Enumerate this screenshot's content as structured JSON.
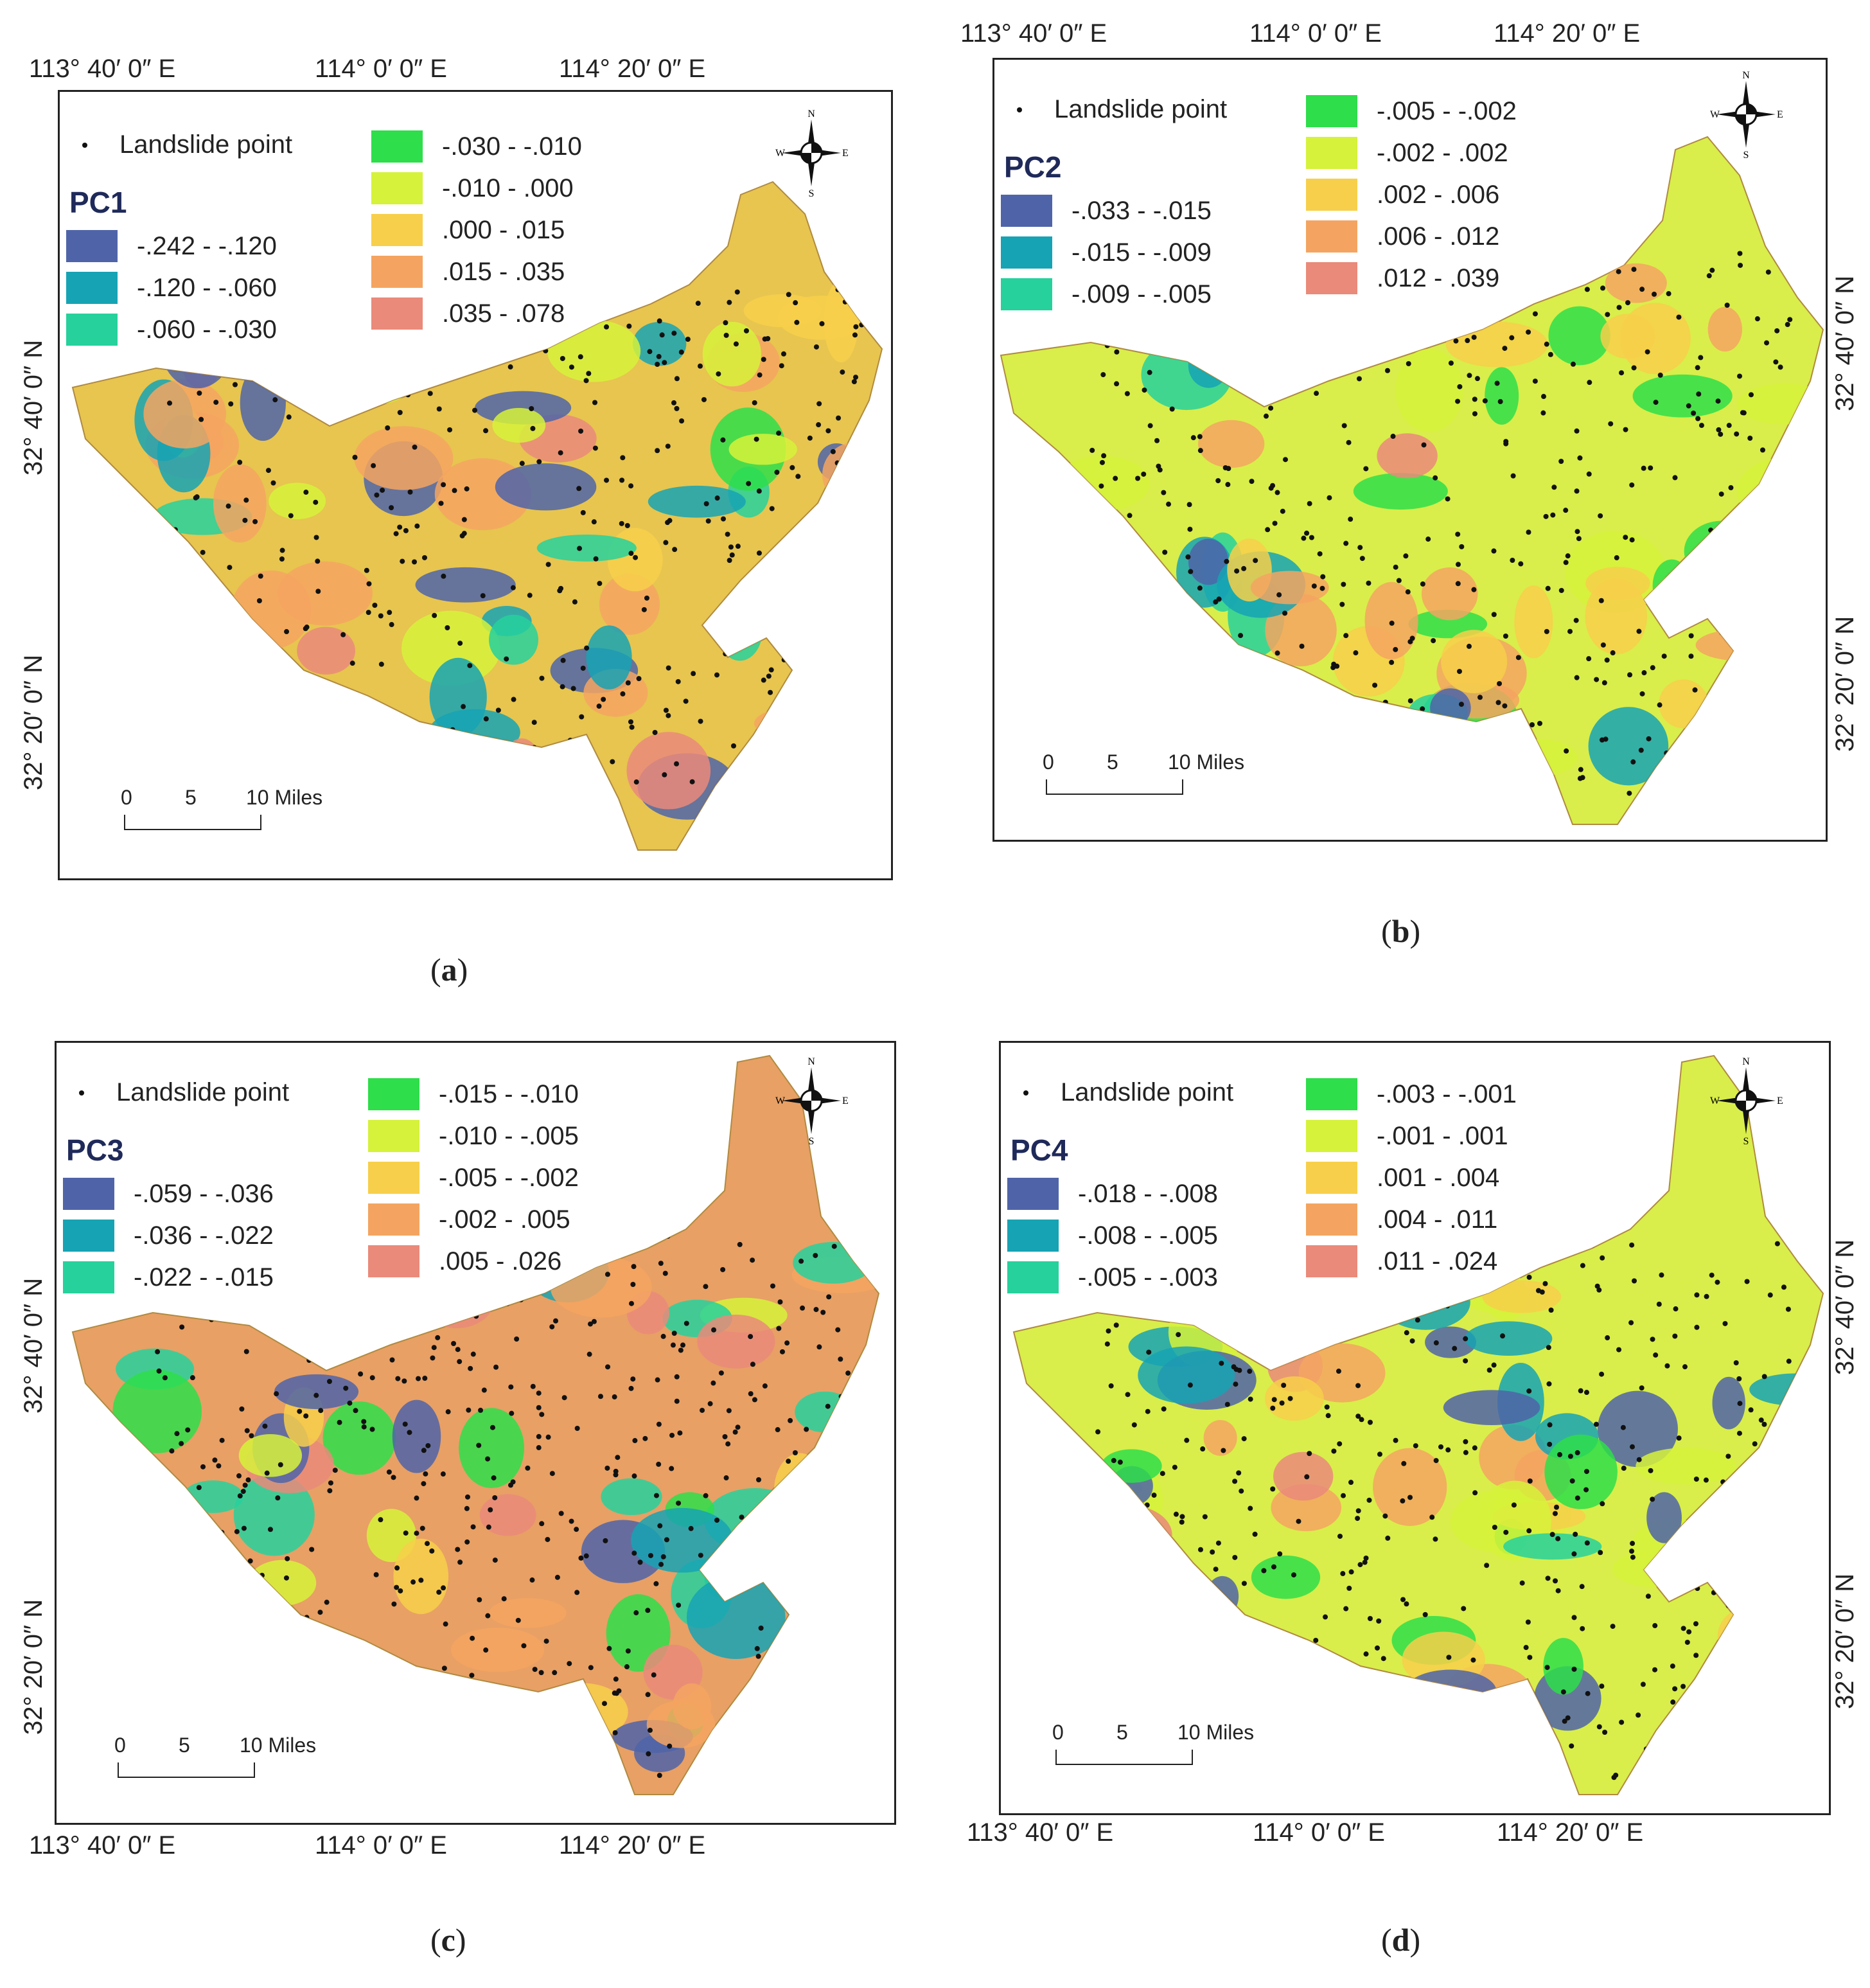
{
  "panels": [
    {
      "id": "a",
      "caption": "a",
      "pc_label": "PC1",
      "landslide_label": "Landslide point",
      "classes_left": [
        {
          "range": "-.242 - -.120",
          "color": "#4f64a8"
        },
        {
          "range": "-.120 - -.060",
          "color": "#16a3b4"
        },
        {
          "range": "-.060 - -.030",
          "color": "#26d19c"
        }
      ],
      "classes_right": [
        {
          "range": "-.030 - -.010",
          "color": "#2ede4a"
        },
        {
          "range": "-.010 - .000",
          "color": "#d6f23a"
        },
        {
          "range": ".000 - .015",
          "color": "#f7cf4a"
        },
        {
          "range": ".015 - .035",
          "color": "#f4a460"
        },
        {
          "range": ".035 - .078",
          "color": "#ea8a7a"
        }
      ],
      "lon_labels": [
        "113° 40′ 0″ E",
        "114° 0′ 0″ E",
        "114° 20′ 0″ E"
      ],
      "lat_labels": [
        "32° 40′ 0″ N",
        "32° 20′ 0″ N"
      ],
      "scale": [
        "0",
        "5",
        "10 Miles"
      ],
      "base_color": "#e7c54f"
    },
    {
      "id": "b",
      "caption": "b",
      "pc_label": "PC2",
      "landslide_label": "Landslide point",
      "classes_left": [
        {
          "range": "-.033 - -.015",
          "color": "#4f64a8"
        },
        {
          "range": "-.015 - -.009",
          "color": "#16a3b4"
        },
        {
          "range": "-.009 - -.005",
          "color": "#26d19c"
        }
      ],
      "classes_right": [
        {
          "range": "-.005 - -.002",
          "color": "#2ede4a"
        },
        {
          "range": "-.002 - .002",
          "color": "#d6f23a"
        },
        {
          "range": ".002 - .006",
          "color": "#f7cf4a"
        },
        {
          "range": ".006 - .012",
          "color": "#f4a460"
        },
        {
          "range": ".012 - .039",
          "color": "#ea8a7a"
        }
      ],
      "lon_labels": [
        "113° 40′ 0″ E",
        "114° 0′ 0″ E",
        "114° 20′ 0″ E"
      ],
      "lat_labels": [
        "32° 40′ 0″ N",
        "32° 20′ 0″ N"
      ],
      "scale": [
        "0",
        "5",
        "10 Miles"
      ],
      "base_color": "#d9ee4a"
    },
    {
      "id": "c",
      "caption": "c",
      "pc_label": "PC3",
      "landslide_label": "Landslide point",
      "classes_left": [
        {
          "range": "-.059 - -.036",
          "color": "#4f64a8"
        },
        {
          "range": "-.036 - -.022",
          "color": "#16a3b4"
        },
        {
          "range": "-.022 - -.015",
          "color": "#26d19c"
        }
      ],
      "classes_right": [
        {
          "range": "-.015 - -.010",
          "color": "#2ede4a"
        },
        {
          "range": "-.010 - -.005",
          "color": "#d6f23a"
        },
        {
          "range": "-.005 - -.002",
          "color": "#f7cf4a"
        },
        {
          "range": "-.002 - .005",
          "color": "#f4a460"
        },
        {
          "range": ".005 - .026",
          "color": "#ea8a7a"
        }
      ],
      "lon_labels": [
        "113° 40′ 0″ E",
        "114° 0′ 0″ E",
        "114° 20′ 0″ E"
      ],
      "lat_labels": [
        "32° 40′ 0″ N",
        "32° 20′ 0″ N"
      ],
      "scale": [
        "0",
        "5",
        "10 Miles"
      ],
      "base_color": "#e8a065"
    },
    {
      "id": "d",
      "caption": "d",
      "pc_label": "PC4",
      "landslide_label": "Landslide point",
      "classes_left": [
        {
          "range": "-.018 - -.008",
          "color": "#4f64a8"
        },
        {
          "range": "-.008 - -.005",
          "color": "#16a3b4"
        },
        {
          "range": "-.005 - -.003",
          "color": "#26d19c"
        }
      ],
      "classes_right": [
        {
          "range": "-.003 - -.001",
          "color": "#2ede4a"
        },
        {
          "range": "-.001 - .001",
          "color": "#d6f23a"
        },
        {
          "range": ".001 - .004",
          "color": "#f7cf4a"
        },
        {
          "range": ".004 - .011",
          "color": "#f4a460"
        },
        {
          "range": ".011 - .024",
          "color": "#ea8a7a"
        }
      ],
      "lon_labels": [
        "113° 40′ 0″ E",
        "114° 0′ 0″ E",
        "114° 20′ 0″ E"
      ],
      "lat_labels": [
        "32° 40′ 0″ N",
        "32° 20′ 0″ N"
      ],
      "scale": [
        "0",
        "5",
        "10 Miles"
      ],
      "base_color": "#d9ee4a"
    }
  ],
  "compass": {
    "n": "N",
    "s": "S",
    "e": "E",
    "w": "W"
  }
}
